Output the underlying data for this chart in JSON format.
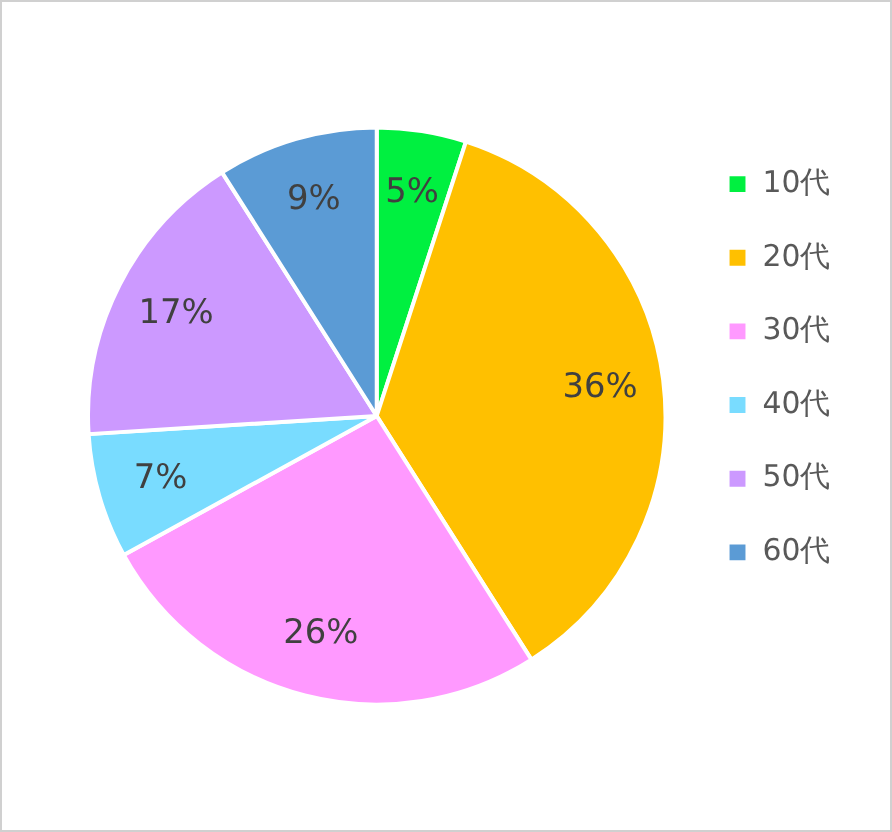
{
  "chart_data": {
    "type": "pie",
    "categories": [
      "10代",
      "20代",
      "30代",
      "40代",
      "50代",
      "60代"
    ],
    "values": [
      5,
      36,
      26,
      7,
      17,
      9
    ],
    "colors": [
      "#00f040",
      "#ffc000",
      "#ff99ff",
      "#79dcff",
      "#cc99ff",
      "#5b9bd5"
    ],
    "value_labels": [
      "5%",
      "36%",
      "26%",
      "7%",
      "17%",
      "9%"
    ],
    "legend": "right"
  }
}
